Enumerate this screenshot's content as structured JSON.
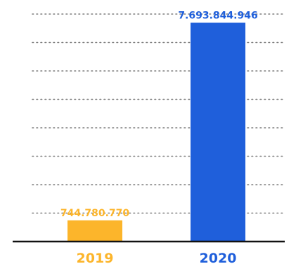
{
  "chart_data": {
    "type": "bar",
    "title": "",
    "xlabel": "",
    "ylabel": "",
    "categories": [
      "2019",
      "2020"
    ],
    "values": [
      744780770,
      7693844946
    ],
    "value_labels": [
      "744.780.770",
      "7.693.844.946"
    ],
    "colors": [
      "#fcb52b",
      "#1f5fdb"
    ],
    "ylim": [
      0,
      8000000000
    ],
    "grid": true,
    "legend": "none"
  }
}
